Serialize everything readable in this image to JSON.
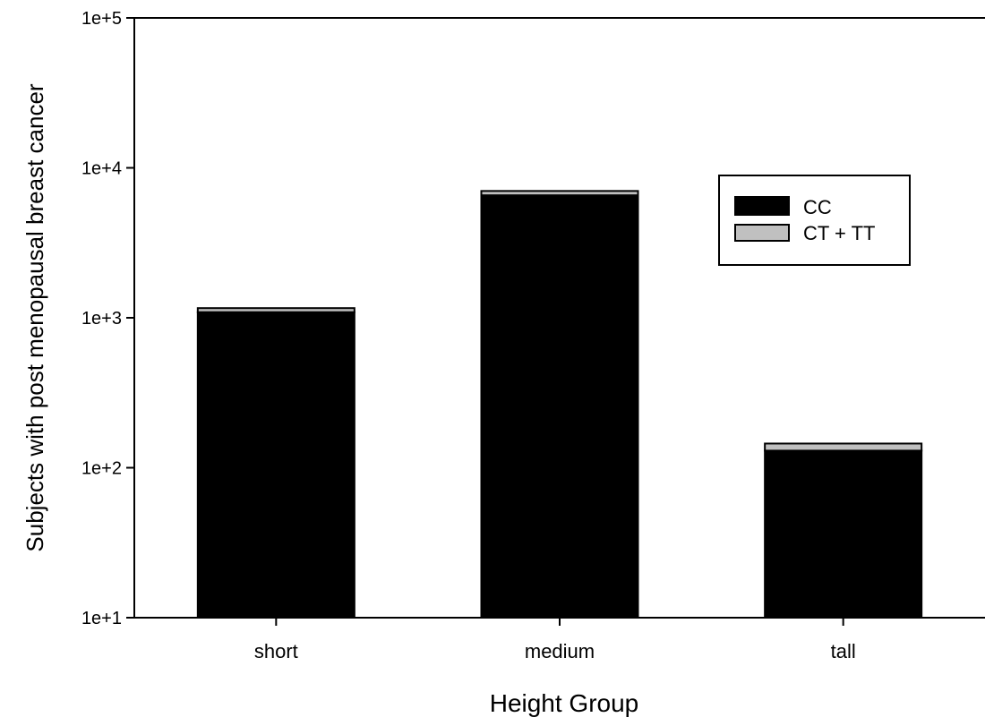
{
  "chart_data": {
    "type": "bar",
    "stacked": true,
    "categories": [
      "short",
      "medium",
      "tall"
    ],
    "series": [
      {
        "name": "CC",
        "values": [
          1080,
          6550,
          120
        ],
        "color": "#000000"
      },
      {
        "name": "CT + TT",
        "values": [
          70,
          450,
          15
        ],
        "color": "#c0c0c0"
      }
    ],
    "xlabel": "Height Group",
    "ylabel": "Subjects with post menopausal breast cancer",
    "yscale": "log",
    "ylim": [
      10,
      100000
    ],
    "yticks": [
      "1e+1",
      "1e+2",
      "1e+3",
      "1e+4",
      "1e+5"
    ],
    "grid": false,
    "legend_position": "top-right"
  }
}
